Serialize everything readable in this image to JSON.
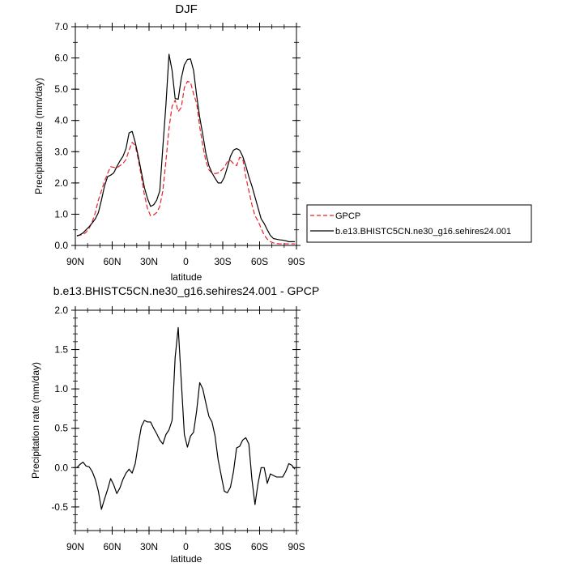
{
  "chart_data": [
    {
      "type": "line",
      "title": "DJF",
      "xlabel": "latitude",
      "ylabel": "Precipitation rate (mm/day)",
      "xlim": [
        90,
        -90
      ],
      "ylim": [
        0,
        7
      ],
      "x_ticks": [
        {
          "value": 90,
          "label": "90N"
        },
        {
          "value": 60,
          "label": "60N"
        },
        {
          "value": 30,
          "label": "30N"
        },
        {
          "value": 0,
          "label": "0"
        },
        {
          "value": -30,
          "label": "30S"
        },
        {
          "value": -60,
          "label": "60S"
        },
        {
          "value": -90,
          "label": "90S"
        }
      ],
      "y_ticks": [
        {
          "value": 0,
          "label": "0.0"
        },
        {
          "value": 1,
          "label": "1.0"
        },
        {
          "value": 2,
          "label": "2.0"
        },
        {
          "value": 3,
          "label": "3.0"
        },
        {
          "value": 4,
          "label": "4.0"
        },
        {
          "value": 5,
          "label": "5.0"
        },
        {
          "value": 6,
          "label": "6.0"
        },
        {
          "value": 7,
          "label": "7.0"
        }
      ],
      "legend_position": "right",
      "series": [
        {
          "name": "GPCP",
          "color": "#e8222b",
          "dash": true,
          "x": [
            88.75,
            86.25,
            83.75,
            81.25,
            78.75,
            76.25,
            73.75,
            71.25,
            68.75,
            66.25,
            63.75,
            61.25,
            58.75,
            56.25,
            53.75,
            51.25,
            48.75,
            46.25,
            43.75,
            41.25,
            38.75,
            36.25,
            33.75,
            31.25,
            28.75,
            26.25,
            23.75,
            21.25,
            18.75,
            16.25,
            13.75,
            11.25,
            8.75,
            6.25,
            3.75,
            1.25,
            -1.25,
            -3.75,
            -6.25,
            -8.75,
            -11.25,
            -13.75,
            -16.25,
            -18.75,
            -21.25,
            -23.75,
            -26.25,
            -28.75,
            -31.25,
            -33.75,
            -36.25,
            -38.75,
            -41.25,
            -43.75,
            -46.25,
            -48.75,
            -51.25,
            -53.75,
            -56.25,
            -58.75,
            -61.25,
            -63.75,
            -66.25,
            -68.75,
            -71.25,
            -73.75,
            -76.25,
            -78.75,
            -81.25,
            -83.75,
            -86.25,
            -88.75
          ],
          "values": [
            0.32,
            0.33,
            0.35,
            0.42,
            0.55,
            0.75,
            1.05,
            1.45,
            1.75,
            2.05,
            2.3,
            2.52,
            2.5,
            2.48,
            2.55,
            2.62,
            2.75,
            3.05,
            3.3,
            3.2,
            2.75,
            2.2,
            1.62,
            1.18,
            0.95,
            0.98,
            1.05,
            1.25,
            1.75,
            2.7,
            3.75,
            4.45,
            4.65,
            4.28,
            4.42,
            5.05,
            5.25,
            5.22,
            4.85,
            4.55,
            3.8,
            3.2,
            2.7,
            2.42,
            2.32,
            2.3,
            2.32,
            2.4,
            2.5,
            2.68,
            2.72,
            2.62,
            2.55,
            2.82,
            2.78,
            2.2,
            1.75,
            1.3,
            0.95,
            0.78,
            0.55,
            0.33,
            0.2,
            0.12,
            0.08,
            0.06,
            0.05,
            0.05,
            0.05,
            0.05,
            0.05,
            0.05
          ]
        },
        {
          "name": "b.e13.BHISTC5CN.ne30_g16.sehires24.001",
          "color": "#000000",
          "dash": false,
          "x": [
            88.75,
            86.25,
            83.75,
            81.25,
            78.75,
            76.25,
            73.75,
            71.25,
            68.75,
            66.25,
            63.75,
            61.25,
            58.75,
            56.25,
            53.75,
            51.25,
            48.75,
            46.25,
            43.75,
            41.25,
            38.75,
            36.25,
            33.75,
            31.25,
            28.75,
            26.25,
            23.75,
            21.25,
            18.75,
            16.25,
            13.75,
            11.25,
            8.75,
            6.25,
            3.75,
            1.25,
            -1.25,
            -3.75,
            -6.25,
            -8.75,
            -11.25,
            -13.75,
            -16.25,
            -18.75,
            -21.25,
            -23.75,
            -26.25,
            -28.75,
            -31.25,
            -33.75,
            -36.25,
            -38.75,
            -41.25,
            -43.75,
            -46.25,
            -48.75,
            -51.25,
            -53.75,
            -56.25,
            -58.75,
            -61.25,
            -63.75,
            -66.25,
            -68.75,
            -71.25,
            -73.75,
            -76.25,
            -78.75,
            -81.25,
            -83.75,
            -86.25,
            -88.75
          ],
          "values": [
            0.3,
            0.34,
            0.4,
            0.5,
            0.6,
            0.72,
            0.85,
            1.05,
            1.45,
            1.9,
            2.2,
            2.25,
            2.32,
            2.52,
            2.7,
            2.85,
            3.1,
            3.6,
            3.65,
            3.3,
            2.85,
            2.35,
            1.85,
            1.5,
            1.25,
            1.3,
            1.45,
            1.75,
            3.15,
            4.5,
            6.12,
            5.6,
            4.7,
            4.68,
            5.35,
            5.78,
            5.95,
            5.97,
            5.6,
            4.8,
            4.1,
            3.55,
            2.95,
            2.55,
            2.32,
            2.15,
            2.0,
            2.0,
            2.18,
            2.5,
            2.85,
            3.05,
            3.1,
            3.05,
            2.85,
            2.55,
            2.2,
            1.9,
            1.55,
            1.2,
            0.85,
            0.7,
            0.5,
            0.32,
            0.22,
            0.2,
            0.18,
            0.17,
            0.15,
            0.12,
            0.12,
            0.12
          ]
        }
      ]
    },
    {
      "type": "line",
      "title": "b.e13.BHISTC5CN.ne30_g16.sehires24.001 - GPCP",
      "xlabel": "latitude",
      "ylabel": "Precipitation rate (mm/day)",
      "xlim": [
        90,
        -90
      ],
      "ylim": [
        -0.8,
        2.0
      ],
      "x_ticks": [
        {
          "value": 90,
          "label": "90N"
        },
        {
          "value": 60,
          "label": "60N"
        },
        {
          "value": 30,
          "label": "30N"
        },
        {
          "value": 0,
          "label": "0"
        },
        {
          "value": -30,
          "label": "30S"
        },
        {
          "value": -60,
          "label": "60S"
        },
        {
          "value": -90,
          "label": "90S"
        }
      ],
      "y_ticks": [
        {
          "value": -0.5,
          "label": "-0.5"
        },
        {
          "value": 0,
          "label": "0.0"
        },
        {
          "value": 0.5,
          "label": "0.5"
        },
        {
          "value": 1.0,
          "label": "1.0"
        },
        {
          "value": 1.5,
          "label": "1.5"
        },
        {
          "value": 2.0,
          "label": "2.0"
        }
      ],
      "series": [
        {
          "color": "#000000",
          "dash": false,
          "x": [
            88.75,
            86.25,
            83.75,
            81.25,
            78.75,
            76.25,
            73.75,
            71.25,
            68.75,
            66.25,
            63.75,
            61.25,
            58.75,
            56.25,
            53.75,
            51.25,
            48.75,
            46.25,
            43.75,
            41.25,
            38.75,
            36.25,
            33.75,
            31.25,
            28.75,
            26.25,
            23.75,
            21.25,
            18.75,
            16.25,
            13.75,
            11.25,
            8.75,
            6.25,
            3.75,
            1.25,
            -1.25,
            -3.75,
            -6.25,
            -8.75,
            -11.25,
            -13.75,
            -16.25,
            -18.75,
            -21.25,
            -23.75,
            -26.25,
            -28.75,
            -31.25,
            -33.75,
            -36.25,
            -38.75,
            -41.25,
            -43.75,
            -46.25,
            -48.75,
            -51.25,
            -53.75,
            -56.25,
            -58.75,
            -61.25,
            -63.75,
            -66.25,
            -68.75,
            -71.25,
            -73.75,
            -76.25,
            -78.75,
            -81.25,
            -83.75,
            -86.25,
            -88.75
          ],
          "values": [
            0.0,
            0.04,
            0.07,
            0.02,
            0.01,
            -0.05,
            -0.15,
            -0.3,
            -0.53,
            -0.4,
            -0.28,
            -0.14,
            -0.22,
            -0.33,
            -0.26,
            -0.15,
            -0.07,
            -0.02,
            -0.07,
            0.05,
            0.3,
            0.52,
            0.6,
            0.58,
            0.58,
            0.5,
            0.43,
            0.35,
            0.3,
            0.42,
            0.48,
            0.6,
            1.4,
            1.78,
            1.1,
            0.42,
            0.26,
            0.4,
            0.45,
            0.72,
            1.08,
            1.0,
            0.82,
            0.65,
            0.58,
            0.4,
            0.1,
            -0.1,
            -0.3,
            -0.32,
            -0.25,
            -0.05,
            0.25,
            0.27,
            0.35,
            0.38,
            0.3,
            -0.15,
            -0.47,
            -0.2,
            0.0,
            0.0,
            -0.2,
            -0.08,
            -0.1,
            -0.12,
            -0.12,
            -0.12,
            -0.05,
            0.05,
            0.03,
            -0.02
          ]
        }
      ]
    }
  ]
}
